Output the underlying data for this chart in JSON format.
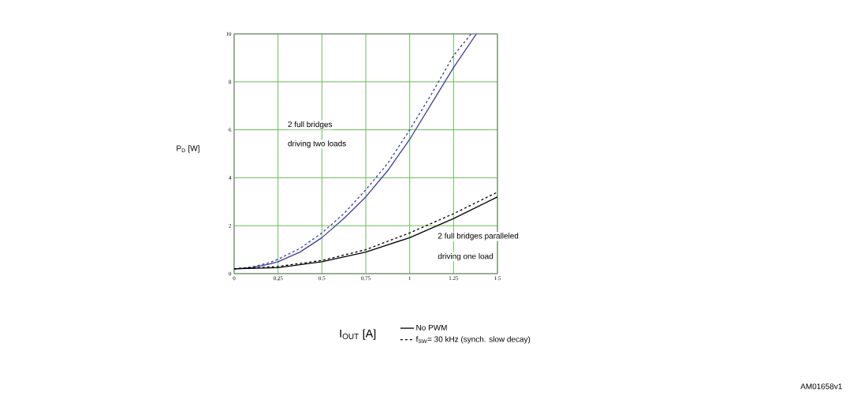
{
  "chart_data": {
    "type": "line",
    "xlabel": "I$_{OUT}$ [A]",
    "ylabel": "P$_{D}$ [W]",
    "xlim": [
      0,
      1.5
    ],
    "ylim": [
      0,
      10
    ],
    "xticks": [
      0,
      0.25,
      0.5,
      0.75,
      1,
      1.25,
      1.5
    ],
    "yticks": [
      0,
      2,
      4,
      6,
      8,
      10
    ],
    "grid": true,
    "legend": "bottom",
    "series": [
      {
        "color": "#3c3ca0",
        "line_style": "solid",
        "x": [
          0,
          0.1,
          0.2,
          0.25,
          0.375,
          0.5,
          0.625,
          0.75,
          0.875,
          1,
          1.125,
          1.25,
          1.38
        ],
        "values": [
          0.2,
          0.25,
          0.4,
          0.5,
          0.9,
          1.5,
          2.3,
          3.2,
          4.3,
          5.6,
          7.1,
          8.6,
          10
        ]
      },
      {
        "color": "#3c3ca0",
        "line_style": "dashed",
        "x": [
          0,
          0.1,
          0.2,
          0.25,
          0.375,
          0.5,
          0.625,
          0.75,
          0.875,
          1,
          1.125,
          1.25,
          1.35
        ],
        "values": [
          0.2,
          0.28,
          0.45,
          0.6,
          1.05,
          1.7,
          2.5,
          3.5,
          4.6,
          6.0,
          7.5,
          9.1,
          10
        ]
      },
      {
        "name": "No PWM",
        "color": "#000000",
        "line_style": "solid",
        "x": [
          0,
          0.25,
          0.5,
          0.75,
          1,
          1.25,
          1.5
        ],
        "values": [
          0.2,
          0.25,
          0.5,
          0.9,
          1.5,
          2.3,
          3.2
        ]
      },
      {
        "name": "f$_{SW}$= 30 kHz (synch. slow decay)",
        "color": "#000000",
        "line_style": "dashed",
        "x": [
          0,
          0.25,
          0.5,
          0.75,
          1,
          1.25,
          1.5
        ],
        "values": [
          0.2,
          0.3,
          0.55,
          1.0,
          1.7,
          2.5,
          3.4
        ]
      }
    ],
    "annotations": [
      "2 full bridges",
      "driving two loads",
      "2 full bridges paralleled",
      "driving one load",
      "AM01658v1"
    ]
  }
}
